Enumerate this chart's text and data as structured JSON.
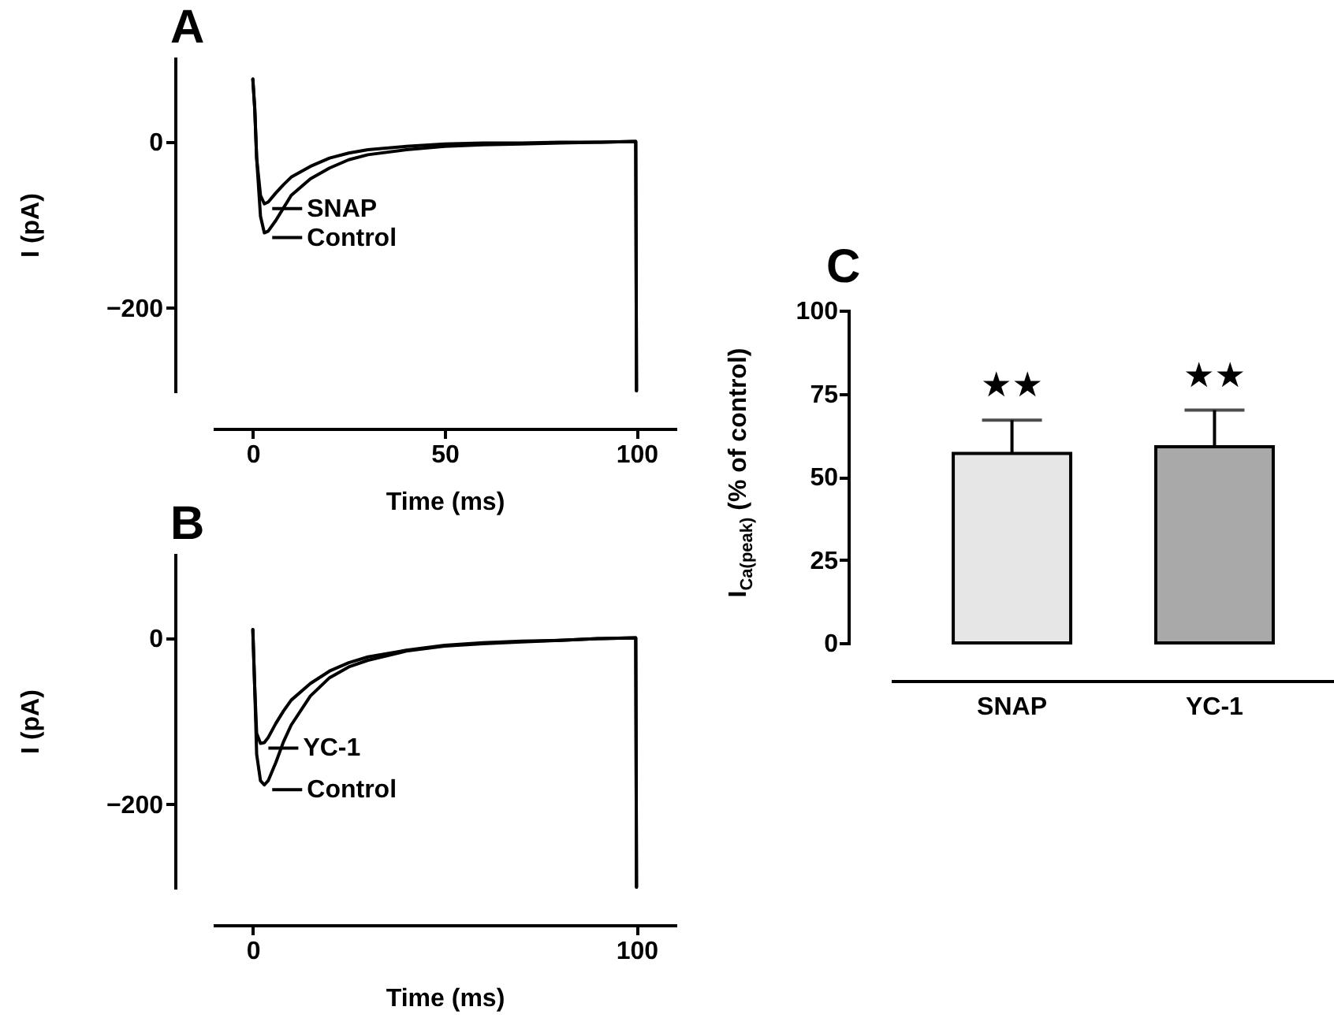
{
  "chart_data": [
    {
      "type": "line",
      "title": "A",
      "xlabel": "Time (ms)",
      "ylabel": "I (pA)",
      "xlim": [
        -10,
        110
      ],
      "ylim": [
        -300,
        100
      ],
      "xticks": [
        0,
        50,
        100
      ],
      "yticks": [
        0,
        -200
      ],
      "grid": false,
      "legend": "left",
      "line_style": "solid",
      "marker": "none",
      "series": [
        {
          "name": "SNAP",
          "color": "#000000",
          "x": [
            0,
            0.5,
            1,
            2,
            3,
            4,
            6,
            8,
            10,
            15,
            20,
            25,
            30,
            40,
            50,
            60,
            70,
            80,
            90,
            99.8,
            100
          ],
          "values": [
            75,
            40,
            -20,
            -65,
            -75,
            -73,
            -62,
            -52,
            -43,
            -30,
            -20,
            -14,
            -10,
            -6,
            -3,
            -2,
            -2,
            -1,
            -1,
            0,
            -300
          ]
        },
        {
          "name": "Control",
          "color": "#000000",
          "x": [
            0,
            0.5,
            1,
            2,
            3,
            4,
            6,
            8,
            10,
            15,
            20,
            25,
            30,
            40,
            50,
            60,
            70,
            80,
            90,
            99.8,
            100
          ],
          "values": [
            75,
            40,
            -20,
            -90,
            -110,
            -108,
            -95,
            -80,
            -65,
            -45,
            -32,
            -22,
            -16,
            -10,
            -6,
            -4,
            -3,
            -2,
            -1,
            0,
            -300
          ]
        }
      ]
    },
    {
      "type": "line",
      "title": "B",
      "xlabel": "Time (ms)",
      "ylabel": "I (pA)",
      "xlim": [
        -10,
        110
      ],
      "ylim": [
        -300,
        100
      ],
      "xticks": [
        0,
        100
      ],
      "yticks": [
        0,
        -200
      ],
      "grid": false,
      "legend": "left",
      "line_style": "solid",
      "marker": "none",
      "series": [
        {
          "name": "YC-1",
          "color": "#000000",
          "x": [
            0,
            0.5,
            1,
            2,
            3,
            4,
            6,
            8,
            10,
            15,
            20,
            25,
            30,
            40,
            50,
            60,
            70,
            80,
            90,
            99.8,
            100
          ],
          "values": [
            10,
            -60,
            -115,
            -127,
            -126,
            -120,
            -103,
            -88,
            -75,
            -55,
            -40,
            -30,
            -23,
            -15,
            -9,
            -6,
            -4,
            -3,
            -1,
            0,
            -300
          ]
        },
        {
          "name": "Control",
          "color": "#000000",
          "x": [
            0,
            0.5,
            1,
            2,
            3,
            4,
            6,
            8,
            10,
            15,
            20,
            25,
            30,
            40,
            50,
            60,
            70,
            80,
            90,
            99.8,
            100
          ],
          "values": [
            10,
            -60,
            -140,
            -172,
            -177,
            -172,
            -150,
            -125,
            -105,
            -70,
            -48,
            -35,
            -27,
            -16,
            -10,
            -7,
            -5,
            -3,
            -1,
            0,
            -300
          ]
        }
      ]
    },
    {
      "type": "bar",
      "title": "C",
      "ylabel": "I$_{Ca(peak)}$ (% of control)",
      "categories": [
        "SNAP",
        "YC-1"
      ],
      "values": [
        57,
        59
      ],
      "colors": [
        "#e6e6e6",
        "#a9a9a9"
      ],
      "errors": [
        [
          57,
          67
        ],
        [
          59,
          70
        ]
      ],
      "ylim": [
        0,
        100
      ],
      "yticks": [
        0,
        25,
        50,
        75,
        100
      ],
      "grid": false,
      "legend": false,
      "annotations": [
        "★★",
        "★★"
      ]
    }
  ]
}
